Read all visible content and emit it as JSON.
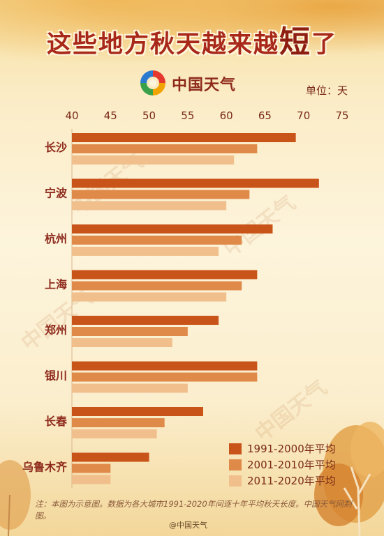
{
  "title": {
    "main": "这些地方秋天越来越",
    "emphasis": "短",
    "tail": "了"
  },
  "brand": "中国天气",
  "unit": "单位：天",
  "legend": {
    "items": [
      {
        "label": "1991-2000年平均",
        "color": "#c9541a"
      },
      {
        "label": "2001-2010年平均",
        "color": "#e08a4a"
      },
      {
        "label": "2011-2020年平均",
        "color": "#f0bf8c"
      }
    ]
  },
  "note": "注：本图为示意图。数据为各大城市1991-2020年间逐十年平均秋天长度。中国天气网制图。",
  "weibo": "@中国天气",
  "watermark": "中国天气",
  "chart_data": {
    "type": "bar",
    "orientation": "horizontal",
    "categories": [
      "长沙",
      "宁波",
      "杭州",
      "上海",
      "郑州",
      "银川",
      "长春",
      "乌鲁木齐"
    ],
    "series": [
      {
        "name": "1991-2000年平均",
        "values": [
          69,
          72,
          66,
          64,
          59,
          64,
          57,
          50
        ]
      },
      {
        "name": "2001-2010年平均",
        "values": [
          64,
          63,
          62,
          62,
          55,
          64,
          52,
          45
        ]
      },
      {
        "name": "2011-2020年平均",
        "values": [
          61,
          60,
          59,
          60,
          53,
          55,
          51,
          45
        ]
      }
    ],
    "x_ticks": [
      "40",
      "45",
      "50",
      "55",
      "60",
      "65",
      "70",
      "75"
    ],
    "xlim": [
      40,
      75
    ],
    "grid": false,
    "legend_position": "bottom-right"
  }
}
